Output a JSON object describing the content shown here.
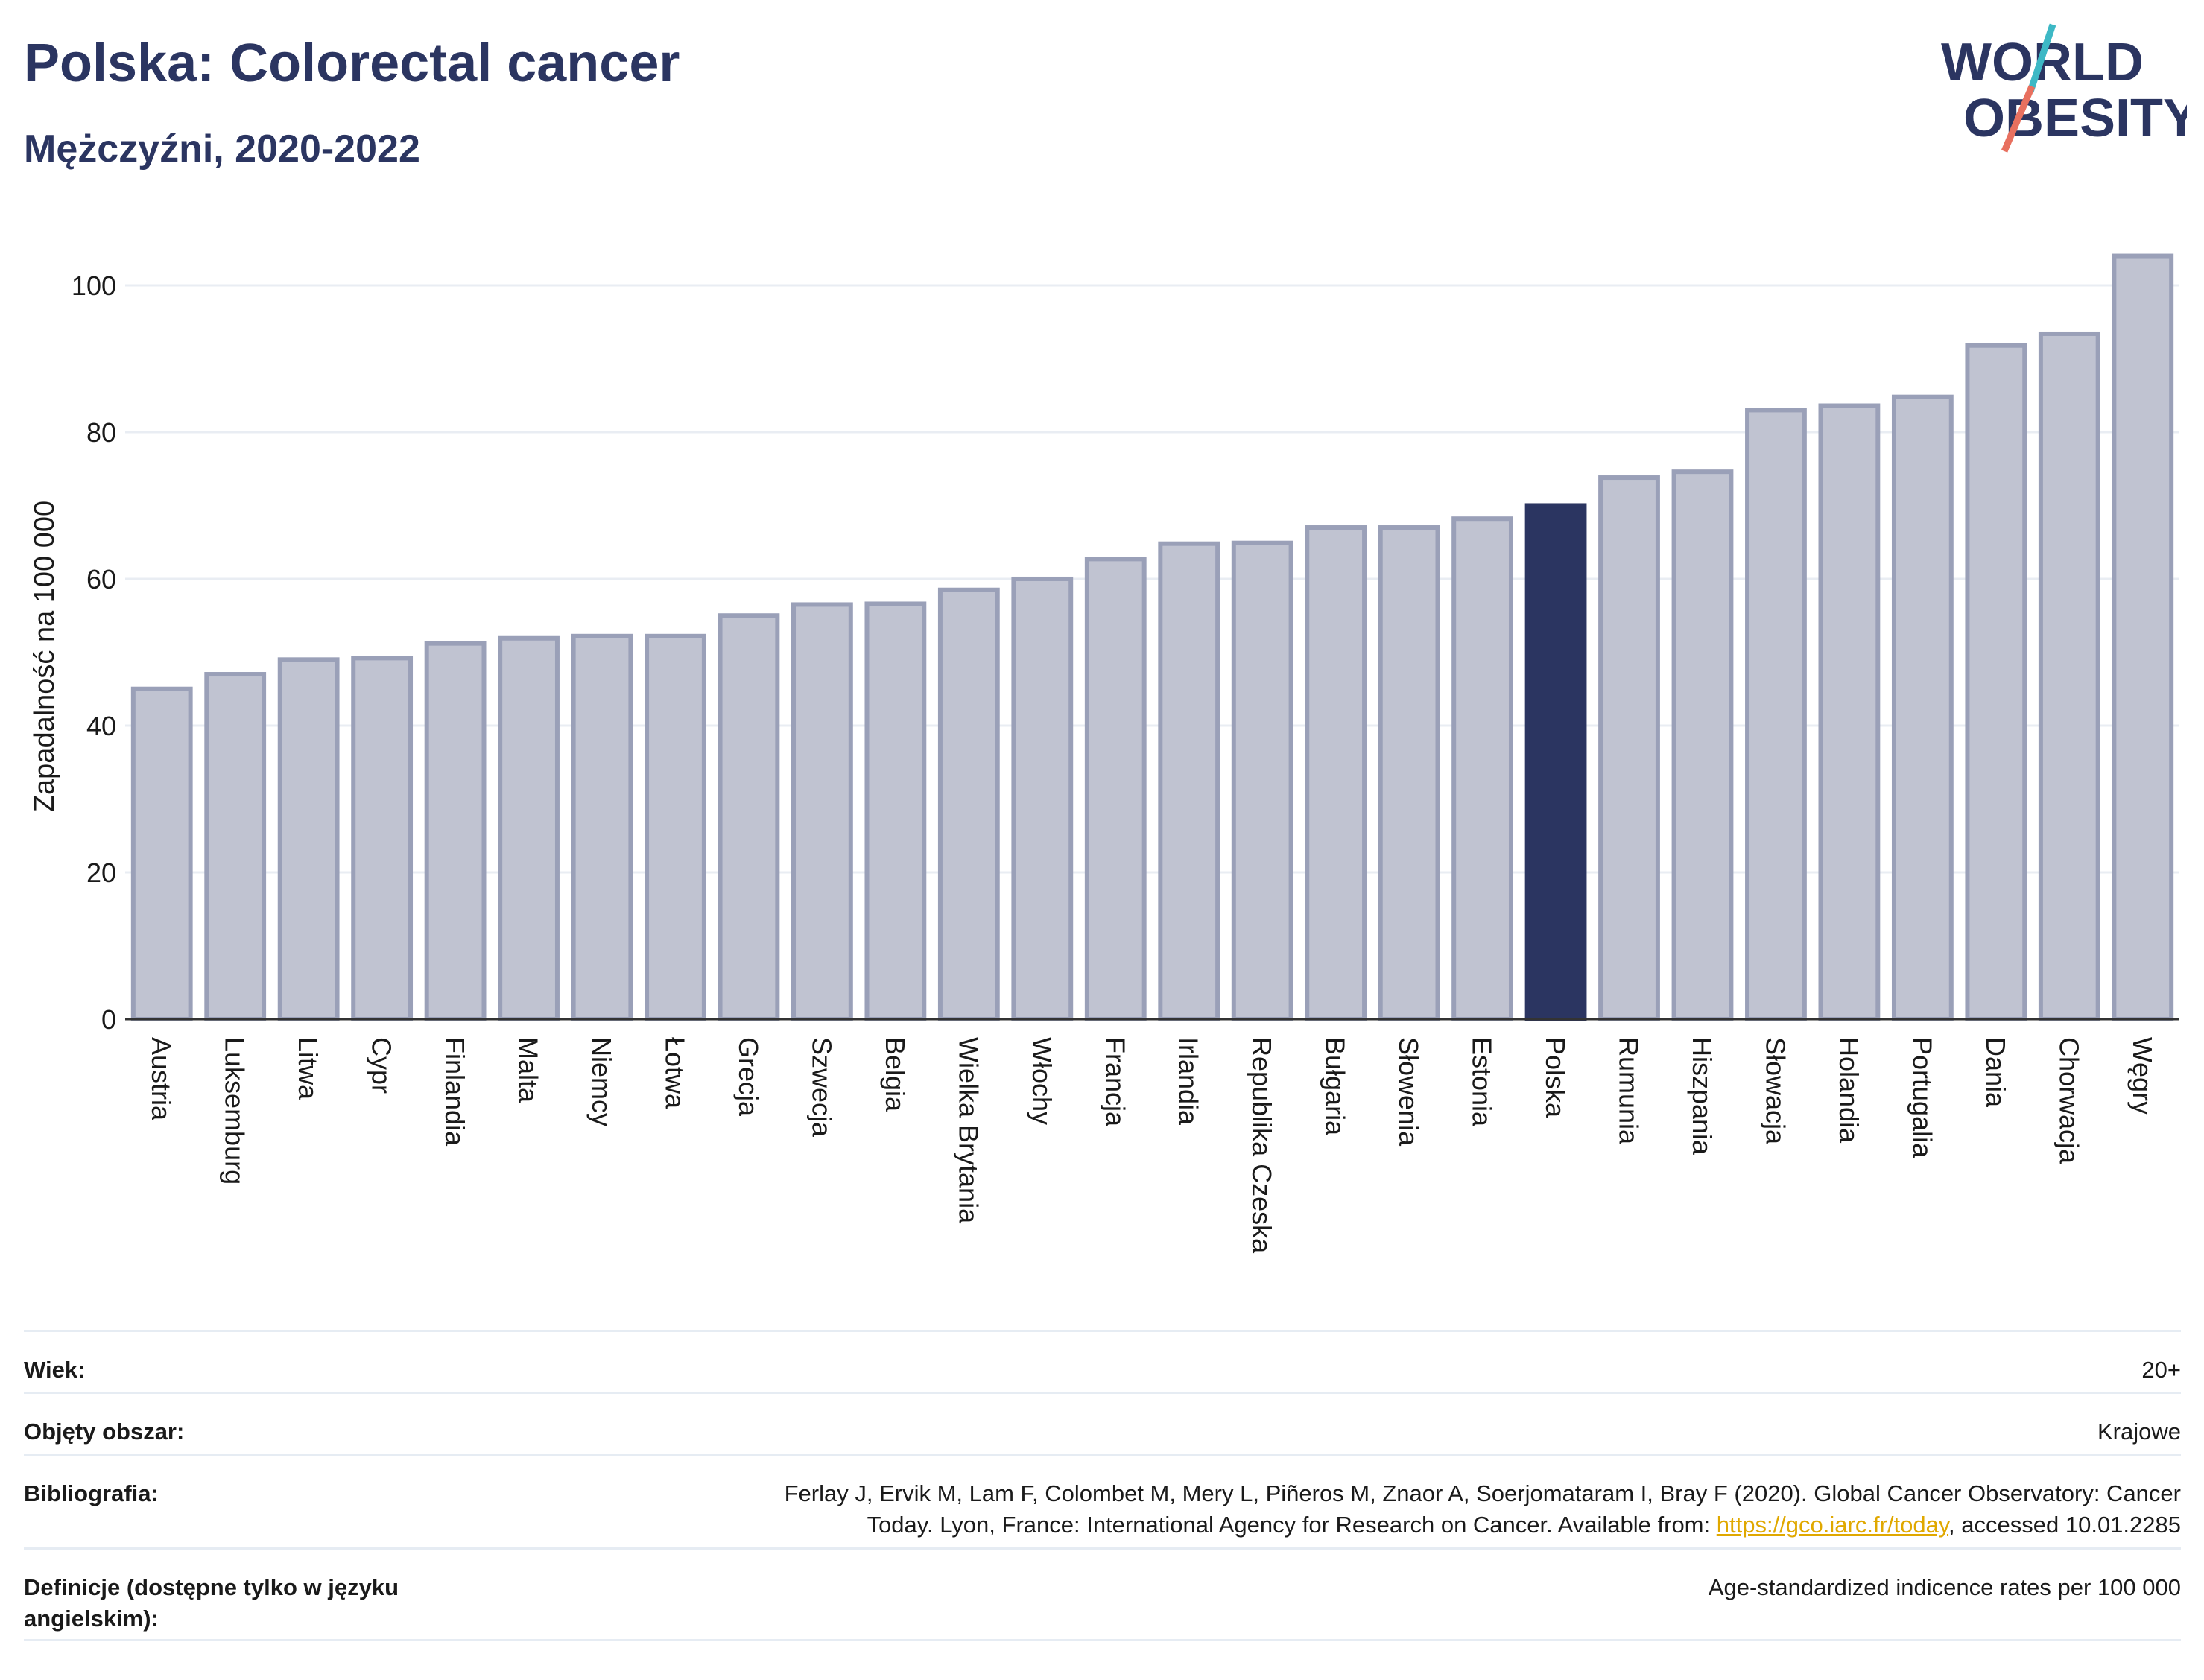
{
  "header": {
    "title": "Polska: Colorectal cancer",
    "subtitle": "Mężczyźni, 2020-2022"
  },
  "logo": {
    "line1": "WORLD",
    "line2": "OBESITY",
    "accent_teal": "#3db8c5",
    "accent_coral": "#e8705f"
  },
  "colors": {
    "bar": "#c0c3d1",
    "bar_stroke": "#9aa0b8",
    "highlight": "#2b3561",
    "grid": "#e9edf3",
    "axis": "#333333"
  },
  "chart_data": {
    "type": "bar",
    "ylabel": "Zapadalność na 100 000",
    "ylim": [
      0,
      107
    ],
    "yticks": [
      0,
      20,
      40,
      60,
      80,
      100
    ],
    "grid": true,
    "highlight": "Polska",
    "categories": [
      "Austria",
      "Luksemburg",
      "Litwa",
      "Cypr",
      "Finlandia",
      "Malta",
      "Niemcy",
      "Łotwa",
      "Grecja",
      "Szwecja",
      "Belgia",
      "Wielka Brytania",
      "Włochy",
      "Francja",
      "Irlandia",
      "Republika Czeska",
      "Bułgaria",
      "Słowenia",
      "Estonia",
      "Polska",
      "Rumunia",
      "Hiszpania",
      "Słowacja",
      "Holandia",
      "Portugalia",
      "Dania",
      "Chorwacja",
      "Węgry"
    ],
    "values": [
      45.0,
      47.0,
      49.0,
      49.2,
      51.2,
      51.9,
      52.2,
      52.2,
      55.0,
      56.5,
      56.6,
      58.5,
      60.0,
      62.7,
      64.8,
      64.9,
      67.0,
      67.0,
      68.2,
      70.0,
      73.8,
      74.6,
      83.0,
      83.6,
      84.8,
      91.8,
      93.4,
      104.0
    ]
  },
  "info": {
    "age_label": "Wiek:",
    "age_value": "20+",
    "area_label": "Objęty obszar:",
    "area_value": "Krajowe",
    "bib_label": "Bibliografia:",
    "bib_text_1": "Ferlay J, Ervik M, Lam F, Colombet M, Mery L, Piñeros M, Znaor A, Soerjomataram I, Bray F (2020). Global Cancer Observatory: Cancer",
    "bib_text_2": "Today. Lyon, France: International Agency for Research on Cancer. Available from: ",
    "bib_link": "https://gco.iarc.fr/today",
    "bib_text_3": ", accessed 10.01.2285",
    "def_label": "Definicje (dostępne tylko w języku angielskim):",
    "def_value": "Age-standardized indicence rates per 100 000"
  }
}
